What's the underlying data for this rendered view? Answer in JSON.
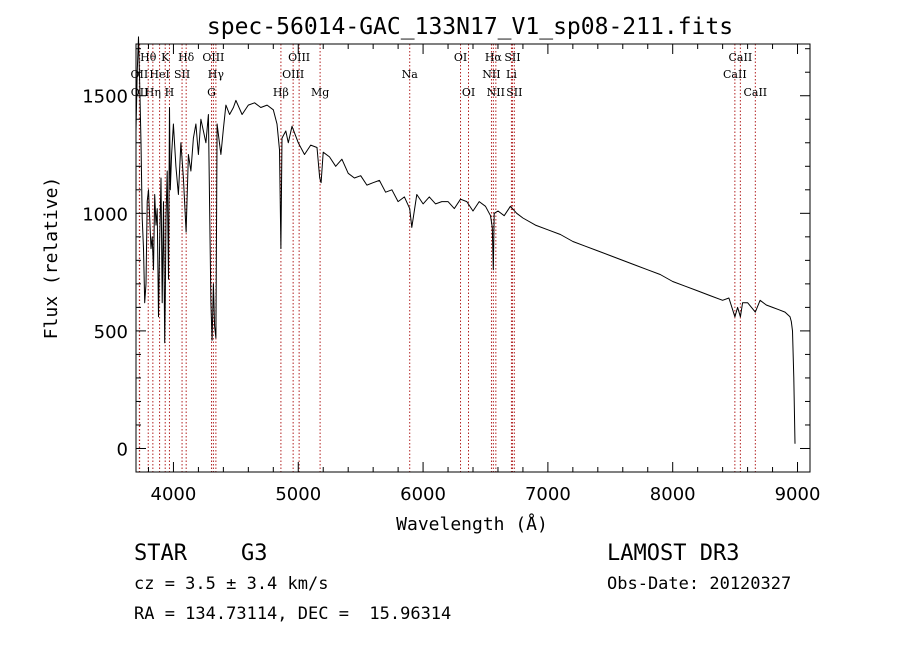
{
  "chart_data": {
    "type": "line",
    "title": "spec-56014-GAC_133N17_V1_sp08-211.fits",
    "xlabel": "Wavelength (Å)",
    "ylabel": "Flux (relative)",
    "xlim": [
      3700,
      9100
    ],
    "ylim": [
      -100,
      1720
    ],
    "xticks": [
      4000,
      5000,
      6000,
      7000,
      8000,
      9000
    ],
    "yticks": [
      0,
      500,
      1000,
      1500
    ],
    "grid": false,
    "series": [
      {
        "name": "flux",
        "x": [
          3700,
          3710,
          3720,
          3730,
          3740,
          3750,
          3760,
          3770,
          3780,
          3790,
          3800,
          3810,
          3820,
          3830,
          3840,
          3850,
          3860,
          3870,
          3880,
          3890,
          3900,
          3910,
          3920,
          3930,
          3935,
          3940,
          3950,
          3960,
          3968,
          3975,
          3985,
          4000,
          4020,
          4040,
          4060,
          4080,
          4101,
          4120,
          4140,
          4160,
          4180,
          4200,
          4220,
          4240,
          4260,
          4280,
          4300,
          4310,
          4320,
          4330,
          4340,
          4350,
          4380,
          4400,
          4420,
          4450,
          4480,
          4500,
          4550,
          4600,
          4650,
          4700,
          4750,
          4800,
          4830,
          4850,
          4861,
          4870,
          4900,
          4920,
          4950,
          5000,
          5050,
          5100,
          5150,
          5172,
          5183,
          5200,
          5250,
          5300,
          5350,
          5400,
          5450,
          5500,
          5550,
          5600,
          5650,
          5700,
          5750,
          5800,
          5850,
          5893,
          5910,
          5950,
          6000,
          6050,
          6100,
          6150,
          6200,
          6250,
          6300,
          6350,
          6400,
          6450,
          6500,
          6540,
          6555,
          6563,
          6570,
          6600,
          6650,
          6700,
          6750,
          6800,
          6900,
          7000,
          7100,
          7200,
          7300,
          7400,
          7500,
          7600,
          7700,
          7800,
          7900,
          8000,
          8100,
          8200,
          8300,
          8400,
          8450,
          8498,
          8520,
          8542,
          8560,
          8600,
          8662,
          8700,
          8750,
          8800,
          8850,
          8900,
          8940,
          8950,
          8960,
          8970,
          8980
        ],
        "values": [
          1350,
          1600,
          1750,
          1550,
          1300,
          980,
          850,
          620,
          700,
          1050,
          1100,
          980,
          850,
          900,
          760,
          1080,
          950,
          1020,
          560,
          890,
          1150,
          620,
          1050,
          450,
          650,
          980,
          1180,
          720,
          1450,
          1100,
          1250,
          1380,
          1200,
          1080,
          1300,
          1150,
          920,
          1250,
          1180,
          1320,
          1380,
          1250,
          1400,
          1350,
          1300,
          1420,
          620,
          460,
          700,
          520,
          470,
          1380,
          1250,
          1360,
          1460,
          1420,
          1450,
          1480,
          1420,
          1460,
          1470,
          1450,
          1460,
          1440,
          1380,
          1270,
          850,
          1320,
          1350,
          1300,
          1370,
          1300,
          1250,
          1290,
          1280,
          1150,
          1130,
          1260,
          1240,
          1200,
          1230,
          1170,
          1150,
          1160,
          1120,
          1130,
          1140,
          1090,
          1100,
          1050,
          1070,
          1020,
          940,
          1080,
          1040,
          1070,
          1040,
          1050,
          1050,
          1020,
          1060,
          1050,
          1010,
          1050,
          1030,
          990,
          940,
          760,
          1000,
          1010,
          990,
          1030,
          1000,
          980,
          950,
          930,
          910,
          880,
          860,
          840,
          820,
          800,
          780,
          760,
          740,
          710,
          690,
          670,
          650,
          630,
          640,
          560,
          600,
          560,
          620,
          620,
          580,
          630,
          610,
          600,
          590,
          580,
          560,
          540,
          500,
          300,
          20
        ]
      }
    ],
    "lines": [
      {
        "label": "Hθ",
        "x": 3798,
        "row": 0
      },
      {
        "label": "OII",
        "x": 3727,
        "row": 1
      },
      {
        "label": "OII",
        "x": 3729,
        "row": 2
      },
      {
        "label": "Hη",
        "x": 3835,
        "row": 2
      },
      {
        "label": "HeI",
        "x": 3889,
        "row": 1
      },
      {
        "label": "K",
        "x": 3934,
        "row": 0
      },
      {
        "label": "H",
        "x": 3968,
        "row": 2
      },
      {
        "label": "SII",
        "x": 4069,
        "row": 1
      },
      {
        "label": "Hδ",
        "x": 4102,
        "row": 0
      },
      {
        "label": "OIII",
        "x": 4320,
        "row": 0
      },
      {
        "label": "Hγ",
        "x": 4340,
        "row": 1
      },
      {
        "label": "G",
        "x": 4305,
        "row": 2
      },
      {
        "label": "Hβ",
        "x": 4861,
        "row": 2
      },
      {
        "label": "OIII",
        "x": 4959,
        "row": 1
      },
      {
        "label": "OIII",
        "x": 5007,
        "row": 0
      },
      {
        "label": "Mg",
        "x": 5175,
        "row": 2
      },
      {
        "label": "Na",
        "x": 5893,
        "row": 1
      },
      {
        "label": "OI",
        "x": 6300,
        "row": 0
      },
      {
        "label": "OI",
        "x": 6364,
        "row": 2
      },
      {
        "label": "Hα",
        "x": 6563,
        "row": 0
      },
      {
        "label": "NII",
        "x": 6548,
        "row": 1
      },
      {
        "label": "NII",
        "x": 6583,
        "row": 2
      },
      {
        "label": "SII",
        "x": 6716,
        "row": 0
      },
      {
        "label": "Li",
        "x": 6708,
        "row": 1
      },
      {
        "label": "SII",
        "x": 6731,
        "row": 2
      },
      {
        "label": "CaII",
        "x": 8542,
        "row": 0
      },
      {
        "label": "CaII",
        "x": 8498,
        "row": 1
      },
      {
        "label": "CaII",
        "x": 8662,
        "row": 2
      }
    ]
  },
  "info": {
    "class": "STAR",
    "subclass": "G3",
    "survey": "LAMOST DR3",
    "cz": "cz = 3.5 ± 3.4 km/s",
    "obsdate": "Obs-Date: 20120327",
    "radec": "RA = 134.73114, DEC =  15.96314"
  }
}
